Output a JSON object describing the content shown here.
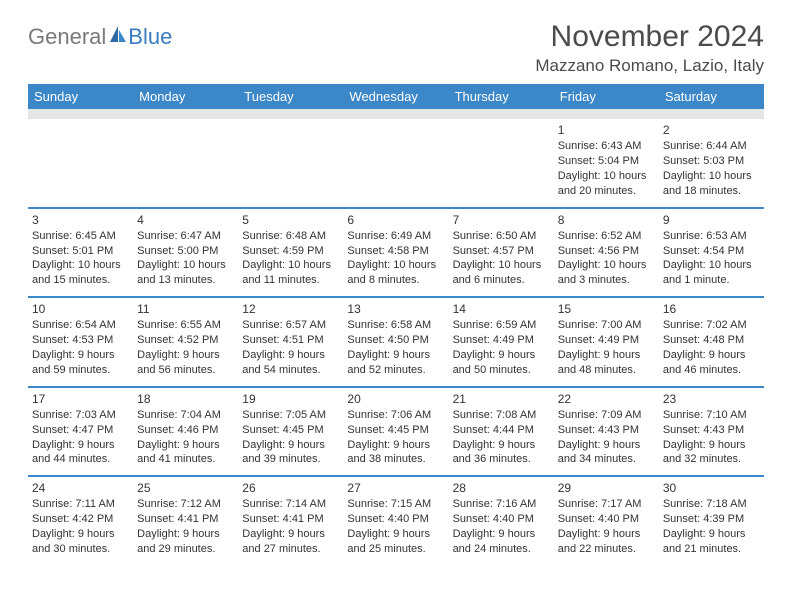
{
  "logo": {
    "part1": "General",
    "part2": "Blue"
  },
  "title": "November 2024",
  "location": "Mazzano Romano, Lazio, Italy",
  "colors": {
    "header_bg": "#3b87c8",
    "header_text": "#ffffff",
    "divider": "#e5e5e5",
    "week_sep": "#3b87c8",
    "text": "#333333",
    "logo_gray": "#7a7a7a",
    "logo_blue": "#3b7bbf"
  },
  "day_labels": [
    "Sunday",
    "Monday",
    "Tuesday",
    "Wednesday",
    "Thursday",
    "Friday",
    "Saturday"
  ],
  "weeks": [
    [
      null,
      null,
      null,
      null,
      null,
      {
        "n": "1",
        "sr": "Sunrise: 6:43 AM",
        "ss": "Sunset: 5:04 PM",
        "dl1": "Daylight: 10 hours",
        "dl2": "and 20 minutes."
      },
      {
        "n": "2",
        "sr": "Sunrise: 6:44 AM",
        "ss": "Sunset: 5:03 PM",
        "dl1": "Daylight: 10 hours",
        "dl2": "and 18 minutes."
      }
    ],
    [
      {
        "n": "3",
        "sr": "Sunrise: 6:45 AM",
        "ss": "Sunset: 5:01 PM",
        "dl1": "Daylight: 10 hours",
        "dl2": "and 15 minutes."
      },
      {
        "n": "4",
        "sr": "Sunrise: 6:47 AM",
        "ss": "Sunset: 5:00 PM",
        "dl1": "Daylight: 10 hours",
        "dl2": "and 13 minutes."
      },
      {
        "n": "5",
        "sr": "Sunrise: 6:48 AM",
        "ss": "Sunset: 4:59 PM",
        "dl1": "Daylight: 10 hours",
        "dl2": "and 11 minutes."
      },
      {
        "n": "6",
        "sr": "Sunrise: 6:49 AM",
        "ss": "Sunset: 4:58 PM",
        "dl1": "Daylight: 10 hours",
        "dl2": "and 8 minutes."
      },
      {
        "n": "7",
        "sr": "Sunrise: 6:50 AM",
        "ss": "Sunset: 4:57 PM",
        "dl1": "Daylight: 10 hours",
        "dl2": "and 6 minutes."
      },
      {
        "n": "8",
        "sr": "Sunrise: 6:52 AM",
        "ss": "Sunset: 4:56 PM",
        "dl1": "Daylight: 10 hours",
        "dl2": "and 3 minutes."
      },
      {
        "n": "9",
        "sr": "Sunrise: 6:53 AM",
        "ss": "Sunset: 4:54 PM",
        "dl1": "Daylight: 10 hours",
        "dl2": "and 1 minute."
      }
    ],
    [
      {
        "n": "10",
        "sr": "Sunrise: 6:54 AM",
        "ss": "Sunset: 4:53 PM",
        "dl1": "Daylight: 9 hours",
        "dl2": "and 59 minutes."
      },
      {
        "n": "11",
        "sr": "Sunrise: 6:55 AM",
        "ss": "Sunset: 4:52 PM",
        "dl1": "Daylight: 9 hours",
        "dl2": "and 56 minutes."
      },
      {
        "n": "12",
        "sr": "Sunrise: 6:57 AM",
        "ss": "Sunset: 4:51 PM",
        "dl1": "Daylight: 9 hours",
        "dl2": "and 54 minutes."
      },
      {
        "n": "13",
        "sr": "Sunrise: 6:58 AM",
        "ss": "Sunset: 4:50 PM",
        "dl1": "Daylight: 9 hours",
        "dl2": "and 52 minutes."
      },
      {
        "n": "14",
        "sr": "Sunrise: 6:59 AM",
        "ss": "Sunset: 4:49 PM",
        "dl1": "Daylight: 9 hours",
        "dl2": "and 50 minutes."
      },
      {
        "n": "15",
        "sr": "Sunrise: 7:00 AM",
        "ss": "Sunset: 4:49 PM",
        "dl1": "Daylight: 9 hours",
        "dl2": "and 48 minutes."
      },
      {
        "n": "16",
        "sr": "Sunrise: 7:02 AM",
        "ss": "Sunset: 4:48 PM",
        "dl1": "Daylight: 9 hours",
        "dl2": "and 46 minutes."
      }
    ],
    [
      {
        "n": "17",
        "sr": "Sunrise: 7:03 AM",
        "ss": "Sunset: 4:47 PM",
        "dl1": "Daylight: 9 hours",
        "dl2": "and 44 minutes."
      },
      {
        "n": "18",
        "sr": "Sunrise: 7:04 AM",
        "ss": "Sunset: 4:46 PM",
        "dl1": "Daylight: 9 hours",
        "dl2": "and 41 minutes."
      },
      {
        "n": "19",
        "sr": "Sunrise: 7:05 AM",
        "ss": "Sunset: 4:45 PM",
        "dl1": "Daylight: 9 hours",
        "dl2": "and 39 minutes."
      },
      {
        "n": "20",
        "sr": "Sunrise: 7:06 AM",
        "ss": "Sunset: 4:45 PM",
        "dl1": "Daylight: 9 hours",
        "dl2": "and 38 minutes."
      },
      {
        "n": "21",
        "sr": "Sunrise: 7:08 AM",
        "ss": "Sunset: 4:44 PM",
        "dl1": "Daylight: 9 hours",
        "dl2": "and 36 minutes."
      },
      {
        "n": "22",
        "sr": "Sunrise: 7:09 AM",
        "ss": "Sunset: 4:43 PM",
        "dl1": "Daylight: 9 hours",
        "dl2": "and 34 minutes."
      },
      {
        "n": "23",
        "sr": "Sunrise: 7:10 AM",
        "ss": "Sunset: 4:43 PM",
        "dl1": "Daylight: 9 hours",
        "dl2": "and 32 minutes."
      }
    ],
    [
      {
        "n": "24",
        "sr": "Sunrise: 7:11 AM",
        "ss": "Sunset: 4:42 PM",
        "dl1": "Daylight: 9 hours",
        "dl2": "and 30 minutes."
      },
      {
        "n": "25",
        "sr": "Sunrise: 7:12 AM",
        "ss": "Sunset: 4:41 PM",
        "dl1": "Daylight: 9 hours",
        "dl2": "and 29 minutes."
      },
      {
        "n": "26",
        "sr": "Sunrise: 7:14 AM",
        "ss": "Sunset: 4:41 PM",
        "dl1": "Daylight: 9 hours",
        "dl2": "and 27 minutes."
      },
      {
        "n": "27",
        "sr": "Sunrise: 7:15 AM",
        "ss": "Sunset: 4:40 PM",
        "dl1": "Daylight: 9 hours",
        "dl2": "and 25 minutes."
      },
      {
        "n": "28",
        "sr": "Sunrise: 7:16 AM",
        "ss": "Sunset: 4:40 PM",
        "dl1": "Daylight: 9 hours",
        "dl2": "and 24 minutes."
      },
      {
        "n": "29",
        "sr": "Sunrise: 7:17 AM",
        "ss": "Sunset: 4:40 PM",
        "dl1": "Daylight: 9 hours",
        "dl2": "and 22 minutes."
      },
      {
        "n": "30",
        "sr": "Sunrise: 7:18 AM",
        "ss": "Sunset: 4:39 PM",
        "dl1": "Daylight: 9 hours",
        "dl2": "and 21 minutes."
      }
    ]
  ]
}
